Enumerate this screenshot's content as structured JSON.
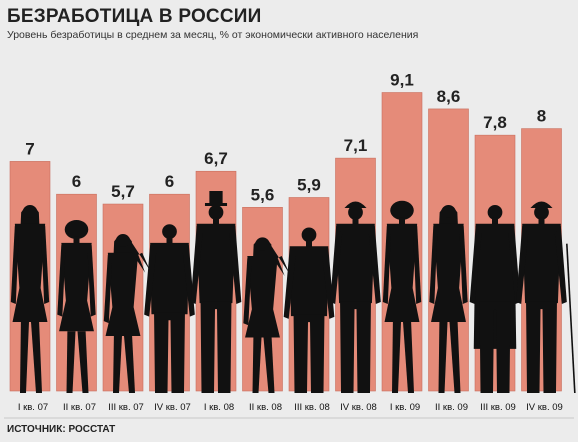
{
  "title": "БЕЗРАБОТИЦА В РОССИИ",
  "subtitle": "Уровень безработицы в среднем за месяц, % от экономически активного населения",
  "source": "ИСТОЧНИК: РОССТАТ",
  "colors": {
    "bar": "#e58b79",
    "bar_edge": "#c9705f",
    "silhouette": "#111111",
    "label": "#222222",
    "tick_label": "#111111"
  },
  "chart_data": {
    "type": "bar",
    "title": "БЕЗРАБОТИЦА В РОССИИ",
    "subtitle": "Уровень безработицы в среднем за месяц, % от экономически активного населения",
    "categories": [
      "I кв. 07",
      "II кв. 07",
      "III кв. 07",
      "IV кв. 07",
      "I кв. 08",
      "II кв. 08",
      "III кв. 08",
      "IV кв. 08",
      "I кв. 09",
      "II кв. 09",
      "III кв. 09",
      "IV кв. 09"
    ],
    "values": [
      7,
      6,
      5.7,
      6,
      6.7,
      5.6,
      5.9,
      7.1,
      9.1,
      8.6,
      7.8,
      8
    ],
    "value_labels": [
      "7",
      "6",
      "5,7",
      "6",
      "6,7",
      "5,6",
      "5,9",
      "7,1",
      "9,1",
      "8,6",
      "7,8",
      "8"
    ],
    "silhouettes": [
      "woman-dress",
      "woman-hair-up",
      "woman-hand-on-head",
      "man-broad",
      "man-top-hat",
      "woman-phone",
      "man-heavy",
      "man-cap-large",
      "woman-big-hair",
      "woman-short-hair",
      "man-coat",
      "man-cane-hat"
    ],
    "xlabel": "",
    "ylabel": "",
    "grid": false,
    "legend": "none"
  }
}
